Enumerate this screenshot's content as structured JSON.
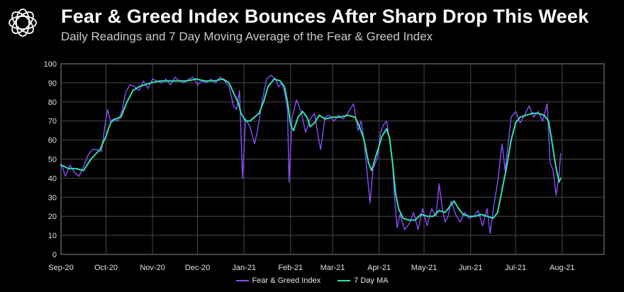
{
  "header": {
    "title": "Fear & Greed Index Bounces After Sharp Drop This Week",
    "subtitle": "Daily Readings and 7 Day Moving Average of the Fear & Greed Index"
  },
  "colors": {
    "daily": "#8a4dff",
    "ma": "#2fe3ad",
    "grid": "#4a4a4a",
    "axis": "#888888",
    "text": "#e0e0e0"
  },
  "chart_data": {
    "type": "line",
    "title": "Fear & Greed Index Bounces After Sharp Drop This Week",
    "subtitle": "Daily Readings and 7 Day Moving Average of the Fear & Greed Index",
    "xlabel": "",
    "ylabel": "",
    "ylim": [
      0,
      100
    ],
    "yticks": [
      0,
      10,
      20,
      30,
      40,
      50,
      60,
      70,
      80,
      90,
      100
    ],
    "grid": true,
    "legend_position": "bottom-center",
    "x_tick_labels": [
      "Sep-20",
      "Oct-20",
      "Nov-20",
      "Dec-20",
      "Jan-21",
      "Feb-21",
      "Mar-21",
      "Apr-21",
      "May-21",
      "Jun-21",
      "Jul-21",
      "Aug-21"
    ],
    "x_tick_days": [
      0,
      30,
      61,
      91,
      122,
      153,
      181,
      212,
      242,
      273,
      303,
      334
    ],
    "x_range_days": [
      0,
      362
    ],
    "series": [
      {
        "name": "Fear & Greed Index",
        "keypoints": [
          [
            0,
            48
          ],
          [
            3,
            41
          ],
          [
            6,
            47
          ],
          [
            9,
            43
          ],
          [
            12,
            41
          ],
          [
            15,
            46
          ],
          [
            18,
            52
          ],
          [
            21,
            55
          ],
          [
            24,
            55
          ],
          [
            27,
            54
          ],
          [
            29,
            66
          ],
          [
            31,
            76
          ],
          [
            33,
            70
          ],
          [
            35,
            71
          ],
          [
            38,
            70
          ],
          [
            41,
            76
          ],
          [
            43,
            85
          ],
          [
            46,
            89
          ],
          [
            49,
            88
          ],
          [
            52,
            86
          ],
          [
            55,
            91
          ],
          [
            58,
            87
          ],
          [
            61,
            92
          ],
          [
            64,
            91
          ],
          [
            67,
            90
          ],
          [
            70,
            92
          ],
          [
            73,
            89
          ],
          [
            76,
            93
          ],
          [
            79,
            91
          ],
          [
            82,
            90
          ],
          [
            85,
            92
          ],
          [
            88,
            93
          ],
          [
            91,
            89
          ],
          [
            94,
            91
          ],
          [
            97,
            90
          ],
          [
            100,
            92
          ],
          [
            103,
            90
          ],
          [
            106,
            93
          ],
          [
            109,
            91
          ],
          [
            112,
            88
          ],
          [
            115,
            78
          ],
          [
            117,
            76
          ],
          [
            119,
            86
          ],
          [
            121,
            40
          ],
          [
            123,
            71
          ],
          [
            126,
            67
          ],
          [
            129,
            58
          ],
          [
            131,
            65
          ],
          [
            134,
            80
          ],
          [
            137,
            92
          ],
          [
            140,
            94
          ],
          [
            143,
            92
          ],
          [
            145,
            88
          ],
          [
            147,
            90
          ],
          [
            149,
            85
          ],
          [
            151,
            76
          ],
          [
            152,
            38
          ],
          [
            154,
            72
          ],
          [
            157,
            81
          ],
          [
            160,
            75
          ],
          [
            163,
            64
          ],
          [
            166,
            71
          ],
          [
            169,
            74
          ],
          [
            171,
            64
          ],
          [
            173,
            55
          ],
          [
            176,
            72
          ],
          [
            179,
            73
          ],
          [
            182,
            70
          ],
          [
            185,
            73
          ],
          [
            188,
            71
          ],
          [
            191,
            74
          ],
          [
            195,
            79
          ],
          [
            198,
            65
          ],
          [
            200,
            70
          ],
          [
            202,
            60
          ],
          [
            205,
            35
          ],
          [
            206,
            27
          ],
          [
            208,
            45
          ],
          [
            211,
            51
          ],
          [
            213,
            64
          ],
          [
            215,
            68
          ],
          [
            217,
            70
          ],
          [
            219,
            60
          ],
          [
            221,
            48
          ],
          [
            222,
            33
          ],
          [
            224,
            14
          ],
          [
            226,
            21
          ],
          [
            229,
            13
          ],
          [
            232,
            16
          ],
          [
            235,
            22
          ],
          [
            238,
            13
          ],
          [
            241,
            24
          ],
          [
            244,
            15
          ],
          [
            247,
            24
          ],
          [
            250,
            20
          ],
          [
            252,
            37
          ],
          [
            254,
            25
          ],
          [
            256,
            17
          ],
          [
            258,
            20
          ],
          [
            260,
            28
          ],
          [
            263,
            21
          ],
          [
            266,
            17
          ],
          [
            269,
            22
          ],
          [
            272,
            19
          ],
          [
            275,
            20
          ],
          [
            278,
            23
          ],
          [
            281,
            15
          ],
          [
            284,
            24
          ],
          [
            286,
            11
          ],
          [
            288,
            23
          ],
          [
            291,
            38
          ],
          [
            294,
            58
          ],
          [
            296,
            44
          ],
          [
            298,
            58
          ],
          [
            300,
            72
          ],
          [
            303,
            75
          ],
          [
            306,
            69
          ],
          [
            309,
            73
          ],
          [
            312,
            78
          ],
          [
            315,
            72
          ],
          [
            318,
            75
          ],
          [
            321,
            70
          ],
          [
            324,
            79
          ],
          [
            326,
            48
          ],
          [
            328,
            44
          ],
          [
            330,
            31
          ],
          [
            332,
            42
          ],
          [
            333,
            53
          ]
        ]
      },
      {
        "name": "7 Day MA",
        "keypoints": [
          [
            0,
            47
          ],
          [
            5,
            45
          ],
          [
            10,
            45
          ],
          [
            15,
            44
          ],
          [
            20,
            50
          ],
          [
            26,
            55
          ],
          [
            30,
            62
          ],
          [
            33,
            69
          ],
          [
            36,
            71
          ],
          [
            40,
            72
          ],
          [
            44,
            80
          ],
          [
            48,
            86
          ],
          [
            52,
            88
          ],
          [
            56,
            89
          ],
          [
            60,
            90
          ],
          [
            66,
            91
          ],
          [
            72,
            91
          ],
          [
            78,
            91
          ],
          [
            84,
            91
          ],
          [
            90,
            92
          ],
          [
            96,
            91
          ],
          [
            102,
            91
          ],
          [
            108,
            92
          ],
          [
            112,
            90
          ],
          [
            116,
            83
          ],
          [
            118,
            80
          ],
          [
            120,
            74
          ],
          [
            123,
            70
          ],
          [
            126,
            70
          ],
          [
            129,
            72
          ],
          [
            132,
            74
          ],
          [
            135,
            80
          ],
          [
            138,
            88
          ],
          [
            142,
            92
          ],
          [
            146,
            91
          ],
          [
            149,
            88
          ],
          [
            151,
            80
          ],
          [
            153,
            68
          ],
          [
            155,
            65
          ],
          [
            158,
            72
          ],
          [
            161,
            75
          ],
          [
            164,
            72
          ],
          [
            166,
            67
          ],
          [
            169,
            69
          ],
          [
            172,
            73
          ],
          [
            176,
            71
          ],
          [
            181,
            72
          ],
          [
            186,
            72
          ],
          [
            191,
            73
          ],
          [
            196,
            72
          ],
          [
            199,
            67
          ],
          [
            202,
            60
          ],
          [
            205,
            48
          ],
          [
            207,
            44
          ],
          [
            210,
            52
          ],
          [
            214,
            62
          ],
          [
            217,
            66
          ],
          [
            219,
            61
          ],
          [
            221,
            48
          ],
          [
            223,
            32
          ],
          [
            225,
            24
          ],
          [
            228,
            19
          ],
          [
            232,
            18
          ],
          [
            236,
            18
          ],
          [
            240,
            21
          ],
          [
            244,
            20
          ],
          [
            248,
            20
          ],
          [
            252,
            23
          ],
          [
            256,
            22
          ],
          [
            259,
            25
          ],
          [
            262,
            28
          ],
          [
            265,
            24
          ],
          [
            268,
            21
          ],
          [
            272,
            20
          ],
          [
            276,
            20
          ],
          [
            280,
            21
          ],
          [
            284,
            20
          ],
          [
            288,
            19
          ],
          [
            291,
            22
          ],
          [
            294,
            34
          ],
          [
            297,
            46
          ],
          [
            300,
            60
          ],
          [
            303,
            69
          ],
          [
            306,
            72
          ],
          [
            310,
            73
          ],
          [
            314,
            74
          ],
          [
            318,
            74
          ],
          [
            322,
            73
          ],
          [
            325,
            70
          ],
          [
            328,
            55
          ],
          [
            330,
            45
          ],
          [
            332,
            38
          ],
          [
            333,
            40
          ]
        ]
      }
    ]
  },
  "legend": {
    "daily_label": "Fear & Greed Index",
    "ma_label": "7 Day MA"
  }
}
